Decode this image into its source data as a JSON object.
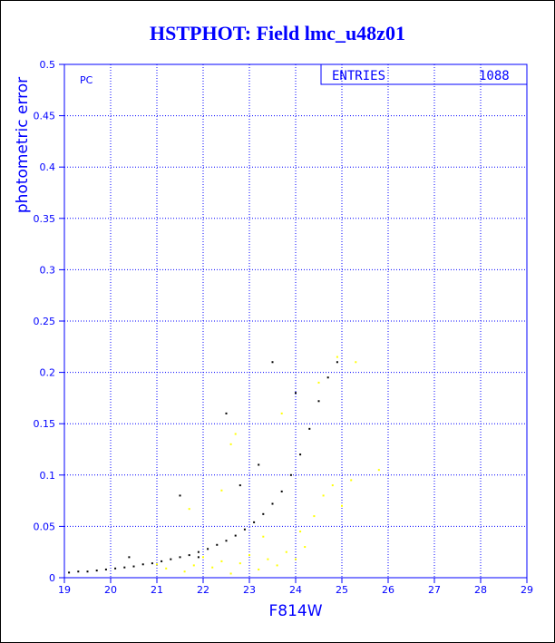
{
  "page": {
    "title": "HSTPHOT: Field lmc_u48z01"
  },
  "chart_data": {
    "type": "scatter",
    "title": "HSTPHOT: Field lmc_u48z01",
    "xlabel": "F814W",
    "ylabel": "photometric error",
    "xlim": [
      19,
      29
    ],
    "ylim": [
      0,
      0.5
    ],
    "x_ticks": [
      "19",
      "20",
      "21",
      "22",
      "23",
      "24",
      "25",
      "26",
      "27",
      "28",
      "29"
    ],
    "y_ticks": [
      "0",
      "0.05",
      "0.1",
      "0.15",
      "0.2",
      "0.25",
      "0.3",
      "0.35",
      "0.4",
      "0.45",
      "0.5"
    ],
    "grid": true,
    "panel_label": "PC",
    "stats_box": {
      "label": "ENTRIES",
      "value": "1088"
    },
    "colors": {
      "axis": "#0000ff",
      "grid": "#0000ff",
      "main_points": "#000000",
      "secondary_points": "#ffff00"
    },
    "series": [
      {
        "color": "#000000",
        "values": [
          [
            19.1,
            0.005
          ],
          [
            19.3,
            0.006
          ],
          [
            19.5,
            0.006
          ],
          [
            19.7,
            0.007
          ],
          [
            19.9,
            0.008
          ],
          [
            20.1,
            0.009
          ],
          [
            20.3,
            0.01
          ],
          [
            20.5,
            0.011
          ],
          [
            20.7,
            0.013
          ],
          [
            20.9,
            0.014
          ],
          [
            21.1,
            0.016
          ],
          [
            21.3,
            0.018
          ],
          [
            21.5,
            0.02
          ],
          [
            21.7,
            0.022
          ],
          [
            21.9,
            0.025
          ],
          [
            22.1,
            0.028
          ],
          [
            22.3,
            0.032
          ],
          [
            22.5,
            0.036
          ],
          [
            22.7,
            0.041
          ],
          [
            22.9,
            0.047
          ],
          [
            23.1,
            0.054
          ],
          [
            23.3,
            0.062
          ],
          [
            23.5,
            0.072
          ],
          [
            23.7,
            0.084
          ],
          [
            23.9,
            0.1
          ],
          [
            24.1,
            0.12
          ],
          [
            24.3,
            0.145
          ],
          [
            24.5,
            0.172
          ],
          [
            24.7,
            0.195
          ],
          [
            24.9,
            0.21
          ],
          [
            22.5,
            0.16
          ],
          [
            23.5,
            0.21
          ],
          [
            24.0,
            0.18
          ],
          [
            23.2,
            0.11
          ],
          [
            22.8,
            0.09
          ],
          [
            21.5,
            0.08
          ],
          [
            21.9,
            0.02
          ],
          [
            20.4,
            0.02
          ]
        ]
      },
      {
        "color": "#ffff00",
        "values": [
          [
            21.0,
            0.013
          ],
          [
            21.2,
            0.009
          ],
          [
            21.6,
            0.006
          ],
          [
            21.8,
            0.012
          ],
          [
            22.0,
            0.02
          ],
          [
            22.2,
            0.01
          ],
          [
            22.4,
            0.016
          ],
          [
            22.6,
            0.004
          ],
          [
            22.8,
            0.014
          ],
          [
            23.0,
            0.022
          ],
          [
            23.2,
            0.008
          ],
          [
            23.4,
            0.018
          ],
          [
            23.6,
            0.012
          ],
          [
            23.8,
            0.025
          ],
          [
            24.0,
            0.018
          ],
          [
            24.2,
            0.03
          ],
          [
            24.4,
            0.06
          ],
          [
            24.6,
            0.08
          ],
          [
            24.8,
            0.09
          ],
          [
            25.0,
            0.07
          ],
          [
            25.2,
            0.095
          ],
          [
            25.8,
            0.105
          ],
          [
            25.3,
            0.21
          ],
          [
            22.4,
            0.085
          ],
          [
            22.6,
            0.13
          ],
          [
            22.7,
            0.14
          ],
          [
            23.3,
            0.04
          ],
          [
            23.7,
            0.16
          ],
          [
            24.5,
            0.19
          ],
          [
            24.9,
            0.215
          ],
          [
            21.7,
            0.067
          ],
          [
            24.1,
            0.045
          ]
        ]
      }
    ]
  }
}
